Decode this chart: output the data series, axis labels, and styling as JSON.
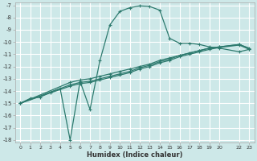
{
  "title": "",
  "xlabel": "Humidex (Indice chaleur)",
  "ylabel": "",
  "bg_color": "#cde8e8",
  "grid_color": "#ffffff",
  "line_color": "#2d7a6e",
  "xlim": [
    -0.5,
    23.5
  ],
  "ylim": [
    -18.2,
    -6.8
  ],
  "xticks": [
    0,
    1,
    2,
    3,
    4,
    5,
    6,
    7,
    8,
    9,
    10,
    11,
    12,
    13,
    14,
    15,
    16,
    17,
    18,
    19,
    20,
    22,
    23
  ],
  "yticks": [
    -7,
    -8,
    -9,
    -10,
    -11,
    -12,
    -13,
    -14,
    -15,
    -16,
    -17,
    -18
  ],
  "curve_main": {
    "x": [
      0,
      1,
      2,
      3,
      4,
      5,
      6,
      7,
      8,
      9,
      10,
      11,
      12,
      13,
      14,
      15,
      16,
      17,
      18,
      19,
      20,
      22,
      23
    ],
    "y": [
      -15.0,
      -14.6,
      -14.5,
      -14.1,
      -13.8,
      -18.0,
      -13.2,
      -15.5,
      -11.5,
      -8.6,
      -7.5,
      -7.2,
      -7.05,
      -7.1,
      -7.4,
      -9.7,
      -10.1,
      -10.1,
      -10.2,
      -10.4,
      -10.5,
      -10.8,
      -10.6
    ]
  },
  "curve_volatile": {
    "x": [
      4,
      5,
      5,
      6,
      7,
      7
    ],
    "y": [
      -13.8,
      -18.0,
      -13.2,
      -13.2,
      -15.5,
      -11.6
    ]
  },
  "line1": {
    "x": [
      0,
      5,
      6,
      7,
      8,
      9,
      10,
      11,
      12,
      13,
      14,
      15,
      16,
      17,
      18,
      19,
      20,
      22,
      23
    ],
    "y": [
      -15.0,
      -13.3,
      -13.1,
      -13.0,
      -12.8,
      -12.6,
      -12.4,
      -12.2,
      -12.0,
      -11.8,
      -11.5,
      -11.3,
      -11.1,
      -10.9,
      -10.7,
      -10.5,
      -10.4,
      -10.2,
      -10.5
    ]
  },
  "line2": {
    "x": [
      0,
      5,
      6,
      7,
      8,
      9,
      10,
      11,
      12,
      13,
      14,
      15,
      16,
      17,
      18,
      19,
      20,
      22,
      23
    ],
    "y": [
      -15.0,
      -13.5,
      -13.3,
      -13.2,
      -13.0,
      -12.8,
      -12.6,
      -12.4,
      -12.1,
      -11.9,
      -11.6,
      -11.4,
      -11.1,
      -10.9,
      -10.7,
      -10.5,
      -10.4,
      -10.2,
      -10.55
    ]
  },
  "line3": {
    "x": [
      0,
      5,
      6,
      7,
      8,
      9,
      10,
      11,
      12,
      13,
      14,
      15,
      16,
      17,
      18,
      19,
      20,
      22,
      23
    ],
    "y": [
      -15.0,
      -13.6,
      -13.4,
      -13.3,
      -13.1,
      -12.9,
      -12.7,
      -12.5,
      -12.2,
      -12.0,
      -11.7,
      -11.5,
      -11.2,
      -11.0,
      -10.8,
      -10.6,
      -10.45,
      -10.25,
      -10.6
    ]
  }
}
